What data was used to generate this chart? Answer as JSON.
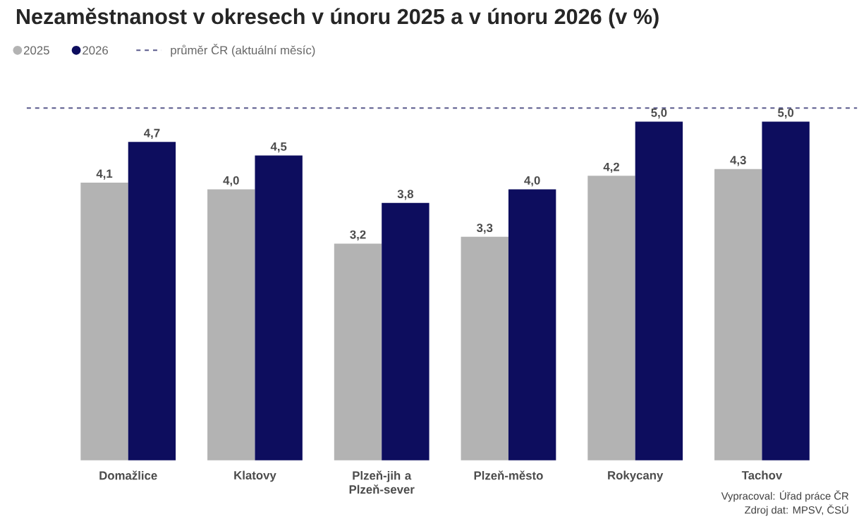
{
  "chart_data": {
    "type": "bar",
    "title": "Nezaměstnanost v okresech v únoru 2025 a v únoru 2026 (v %)",
    "categories": [
      "Domažlice",
      "Klatovy",
      "Plzeň-jih a Plzeň-sever",
      "Plzeň-město",
      "Rokycany",
      "Tachov"
    ],
    "series": [
      {
        "name": "2025",
        "color": "#b3b3b3",
        "values": [
          4.1,
          4.0,
          3.2,
          3.3,
          4.2,
          4.3
        ],
        "value_labels": [
          "4,1",
          "4,0",
          "3,2",
          "3,3",
          "4,2",
          "4,3"
        ]
      },
      {
        "name": "2026",
        "color": "#0d0d5e",
        "values": [
          4.7,
          4.5,
          3.8,
          4.0,
          5.0,
          5.0
        ],
        "value_labels": [
          "4,7",
          "4,5",
          "3,8",
          "4,0",
          "5,0",
          "5,0"
        ]
      }
    ],
    "ref_lines": [
      {
        "axis": "y",
        "value": 5.2,
        "label": "průměr ČR (aktuální měsíc)",
        "color": "#5a5a8c",
        "line_style": "dashed"
      }
    ],
    "legend": "top left",
    "annotations": [
      "Vypracoval: Úřad práce ČR",
      "Zdroj dat: MPSV, ČSÚ"
    ]
  }
}
